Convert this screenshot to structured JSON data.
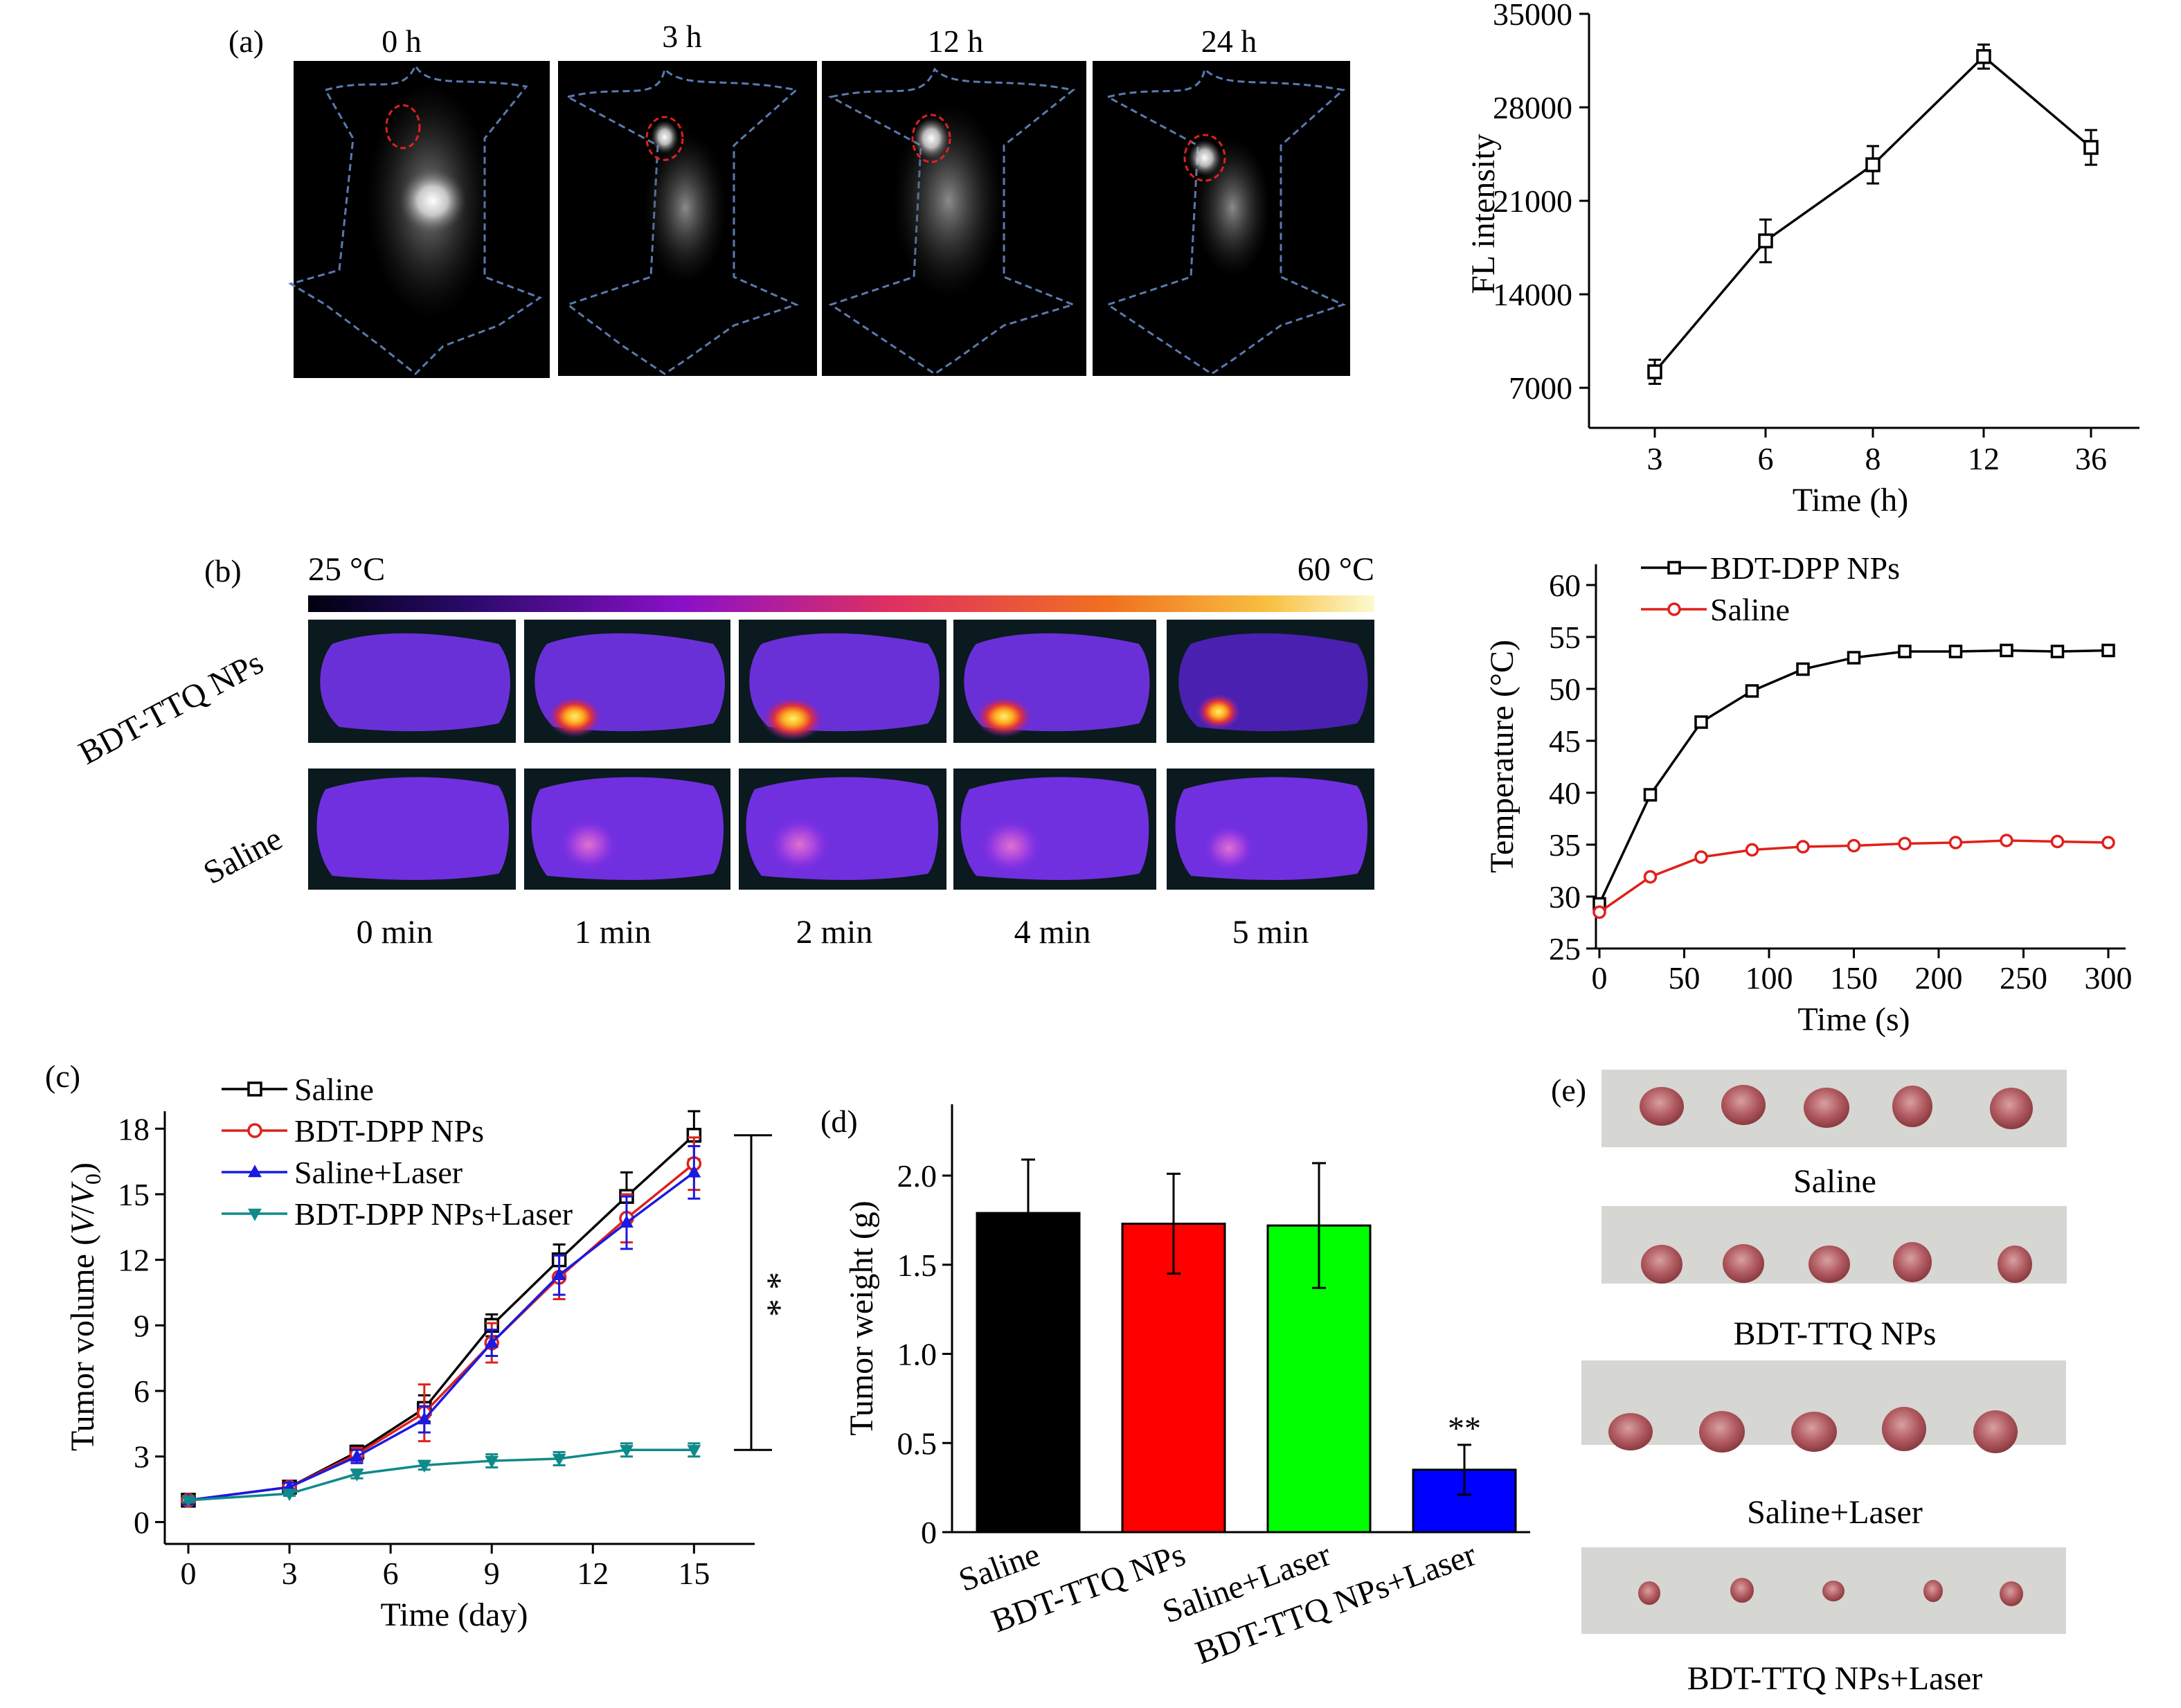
{
  "panel_labels": {
    "a": "(a)",
    "b": "(b)",
    "c": "(c)",
    "d": "(d)",
    "e": "(e)"
  },
  "panel_a_images": {
    "time_labels": [
      "0 h",
      "3 h",
      "12 h",
      "24 h"
    ]
  },
  "panel_b_images": {
    "scale_min": "25 °C",
    "scale_max": "60 °C",
    "row_labels": [
      "BDT-TTQ NPs",
      "Saline"
    ],
    "time_labels": [
      "0 min",
      "1 min",
      "2 min",
      "4 min",
      "5 min"
    ]
  },
  "panel_e_images": {
    "group_labels": [
      "Saline",
      "BDT-TTQ NPs",
      "Saline+Laser",
      "BDT-TTQ NPs+Laser"
    ]
  },
  "chart_data": [
    {
      "id": "fl",
      "type": "line",
      "xlabel": "Time (h)",
      "ylabel": "FL intensity",
      "categories": [
        "3",
        "6",
        "8",
        "12",
        "36"
      ],
      "yticks": [
        7000,
        14000,
        21000,
        28000,
        35000
      ],
      "ylim": [
        4000,
        35000
      ],
      "series": [
        {
          "values": [
            8200,
            18000,
            23700,
            31800,
            25000
          ],
          "errors": [
            900,
            1600,
            1400,
            900,
            1300
          ],
          "color": "#000000",
          "marker": "square-open"
        }
      ]
    },
    {
      "id": "temp",
      "type": "line",
      "xlabel": "Time (s)",
      "ylabel": "Temperature (°C)",
      "xlim": [
        0,
        300
      ],
      "ylim": [
        25,
        62
      ],
      "xticks": [
        0,
        50,
        100,
        150,
        200,
        250,
        300
      ],
      "yticks": [
        25,
        30,
        35,
        40,
        45,
        50,
        55,
        60
      ],
      "legend": "top-left",
      "x": [
        0,
        30,
        60,
        90,
        120,
        150,
        180,
        210,
        240,
        270,
        300
      ],
      "series": [
        {
          "name": "BDT-DPP NPs",
          "color": "#000000",
          "marker": "square-open",
          "values": [
            29.3,
            39.8,
            46.8,
            49.8,
            51.9,
            53.0,
            53.6,
            53.6,
            53.7,
            53.6,
            53.7
          ]
        },
        {
          "name": "Saline",
          "color": "#e0201b",
          "marker": "circle-open",
          "values": [
            28.5,
            31.9,
            33.8,
            34.5,
            34.8,
            34.9,
            35.1,
            35.2,
            35.4,
            35.3,
            35.2
          ]
        }
      ]
    },
    {
      "id": "volume",
      "type": "line",
      "xlabel": "Time (day)",
      "ylabel_main": "Tumor volume (",
      "ylabel_v": "V",
      "ylabel_slash": "/",
      "ylabel_v0": "V",
      "ylabel_sub": "0",
      "ylabel_end": ")",
      "xlim": [
        0,
        16.8
      ],
      "ylim": [
        -1,
        18.8
      ],
      "xticks": [
        0,
        3,
        6,
        9,
        12,
        15
      ],
      "yticks": [
        0,
        3,
        6,
        9,
        12,
        15,
        18
      ],
      "legend": "top-left",
      "significance": "* *",
      "x": [
        0,
        3,
        5,
        7,
        9,
        11,
        13,
        15
      ],
      "series": [
        {
          "name": "Saline",
          "color": "#000000",
          "marker": "square-open",
          "values": [
            1.0,
            1.6,
            3.2,
            5.2,
            9.0,
            12.0,
            14.9,
            17.7
          ],
          "errors": [
            0.1,
            0.2,
            0.3,
            0.6,
            0.5,
            0.7,
            1.1,
            1.1
          ]
        },
        {
          "name": "BDT-DPP NPs",
          "color": "#e0201b",
          "marker": "circle-open",
          "values": [
            1.0,
            1.6,
            3.1,
            5.0,
            8.2,
            11.2,
            13.9,
            16.4
          ],
          "errors": [
            0.1,
            0.2,
            0.3,
            1.3,
            0.9,
            1.0,
            1.1,
            1.2
          ]
        },
        {
          "name": "Saline+Laser",
          "color": "#1a1ae0",
          "marker": "triangle-up",
          "values": [
            1.0,
            1.6,
            3.0,
            4.7,
            8.2,
            11.3,
            13.7,
            16.0
          ],
          "errors": [
            0.1,
            0.2,
            0.3,
            0.6,
            0.6,
            0.9,
            1.2,
            1.2
          ]
        },
        {
          "name": "BDT-DPP NPs+Laser",
          "color": "#0f8a8a",
          "marker": "triangle-down",
          "values": [
            1.0,
            1.3,
            2.2,
            2.6,
            2.8,
            2.9,
            3.3,
            3.3
          ],
          "errors": [
            0.1,
            0.1,
            0.2,
            0.2,
            0.3,
            0.3,
            0.3,
            0.3
          ]
        }
      ]
    },
    {
      "id": "weight",
      "type": "bar",
      "ylabel": "Tumor weight (g)",
      "ylim": [
        0,
        2.4
      ],
      "yticks": [
        0,
        0.5,
        1.0,
        1.5,
        2.0
      ],
      "ytick_labels": [
        "0",
        "0.5",
        "1.0",
        "1.5",
        "2.0"
      ],
      "categories": [
        "Saline",
        "BDT-TTQ NPs",
        "Saline+Laser",
        "BDT-TTQ NPs+Laser"
      ],
      "values": [
        1.79,
        1.73,
        1.72,
        0.35
      ],
      "errors": [
        0.3,
        0.28,
        0.35,
        0.14
      ],
      "colors": [
        "#000000",
        "#ff0000",
        "#00ff00",
        "#0000ff"
      ],
      "annotation": "**"
    }
  ]
}
